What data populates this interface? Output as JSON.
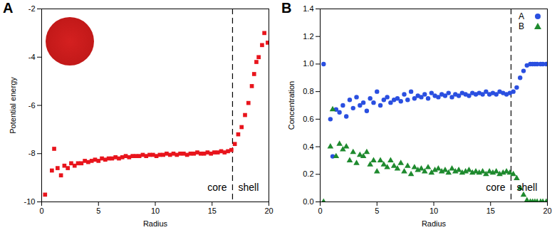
{
  "chart_data": [
    {
      "type": "scatter",
      "title": "A",
      "xlabel": "Radius",
      "ylabel": "Potential energy",
      "xlim": [
        0,
        20
      ],
      "xticks": [
        0,
        5,
        10,
        15,
        20
      ],
      "ylim": [
        -10,
        -2
      ],
      "yticks": [
        -10,
        -8,
        -6,
        -4,
        -2
      ],
      "vline": 16.8,
      "annotations": [
        "core",
        "shell"
      ],
      "x": [
        0.3,
        0.9,
        1.1,
        1.4,
        1.7,
        2.0,
        2.3,
        2.6,
        2.9,
        3.2,
        3.5,
        3.8,
        4.1,
        4.4,
        4.7,
        5.0,
        5.3,
        5.6,
        5.9,
        6.2,
        6.5,
        6.8,
        7.1,
        7.4,
        7.7,
        8.0,
        8.3,
        8.6,
        8.9,
        9.2,
        9.5,
        9.8,
        10.1,
        10.4,
        10.7,
        11.0,
        11.3,
        11.6,
        11.9,
        12.2,
        12.5,
        12.8,
        13.1,
        13.4,
        13.7,
        14.0,
        14.3,
        14.6,
        14.9,
        15.2,
        15.5,
        15.8,
        16.1,
        16.4,
        16.7,
        17.0,
        17.3,
        17.6,
        17.9,
        18.2,
        18.5,
        18.7,
        18.9,
        19.1,
        19.4,
        19.6,
        19.9
      ],
      "series": [
        {
          "color": "#e8141c",
          "marker": "square",
          "values": [
            -9.7,
            -8.7,
            -7.8,
            -8.6,
            -8.9,
            -8.5,
            -8.6,
            -8.4,
            -8.5,
            -8.4,
            -8.4,
            -8.3,
            -8.35,
            -8.3,
            -8.25,
            -8.3,
            -8.2,
            -8.25,
            -8.2,
            -8.2,
            -8.15,
            -8.2,
            -8.15,
            -8.1,
            -8.15,
            -8.1,
            -8.1,
            -8.1,
            -8.05,
            -8.1,
            -8.05,
            -8.05,
            -8.1,
            -8.05,
            -8.05,
            -8.0,
            -8.05,
            -8.0,
            -8.05,
            -8.0,
            -8.0,
            -8.05,
            -8.0,
            -8.0,
            -7.95,
            -8.0,
            -8.0,
            -7.95,
            -8.0,
            -7.95,
            -7.95,
            -7.9,
            -7.95,
            -7.9,
            -7.85,
            -7.6,
            -7.2,
            -6.9,
            -6.4,
            -5.9,
            -5.2,
            -4.7,
            -4.2,
            -4.0,
            -3.5,
            -3.0,
            -3.4
          ]
        }
      ]
    },
    {
      "type": "scatter",
      "title": "B",
      "xlabel": "Radius",
      "ylabel": "Concentration",
      "xlim": [
        0,
        20
      ],
      "xticks": [
        0,
        5,
        10,
        15,
        20
      ],
      "ylim": [
        0,
        1.4
      ],
      "yticks": [
        {
          "value": 0,
          "label": "0.0"
        },
        0.2,
        0.4,
        0.6,
        0.8,
        {
          "value": 1,
          "label": "1.0"
        },
        1.2,
        1.4
      ],
      "vline": 16.8,
      "annotations": [
        "core",
        "shell"
      ],
      "legend": "top-right",
      "x": [
        0.3,
        0.9,
        1.1,
        1.4,
        1.7,
        2.0,
        2.3,
        2.6,
        2.9,
        3.2,
        3.5,
        3.8,
        4.1,
        4.4,
        4.7,
        5.0,
        5.3,
        5.6,
        5.9,
        6.2,
        6.5,
        6.8,
        7.1,
        7.4,
        7.7,
        8.0,
        8.3,
        8.6,
        8.9,
        9.2,
        9.5,
        9.8,
        10.1,
        10.4,
        10.7,
        11.0,
        11.3,
        11.6,
        11.9,
        12.2,
        12.5,
        12.8,
        13.1,
        13.4,
        13.7,
        14.0,
        14.3,
        14.6,
        14.9,
        15.2,
        15.5,
        15.8,
        16.1,
        16.4,
        16.7,
        17.0,
        17.3,
        17.6,
        17.9,
        18.2,
        18.5,
        18.7,
        18.9,
        19.1,
        19.4,
        19.6,
        19.9
      ],
      "series": [
        {
          "name": "A",
          "color": "#2a4fe0",
          "marker": "circle",
          "values": [
            1.0,
            0.6,
            0.33,
            0.67,
            0.65,
            0.7,
            0.62,
            0.74,
            0.68,
            0.76,
            0.7,
            0.72,
            0.66,
            0.75,
            0.72,
            0.8,
            0.7,
            0.74,
            0.76,
            0.72,
            0.74,
            0.75,
            0.73,
            0.78,
            0.74,
            0.8,
            0.75,
            0.77,
            0.76,
            0.78,
            0.75,
            0.79,
            0.77,
            0.76,
            0.78,
            0.77,
            0.79,
            0.76,
            0.78,
            0.77,
            0.79,
            0.78,
            0.77,
            0.79,
            0.78,
            0.79,
            0.78,
            0.8,
            0.78,
            0.79,
            0.78,
            0.8,
            0.79,
            0.78,
            0.79,
            0.8,
            0.83,
            0.9,
            0.95,
            0.99,
            1.0,
            1.0,
            1.0,
            1.0,
            1.0,
            1.0,
            1.0
          ]
        },
        {
          "name": "B",
          "color": "#1e8a2e",
          "marker": "triangle",
          "values": [
            0.0,
            0.4,
            0.67,
            0.33,
            0.42,
            0.38,
            0.4,
            0.3,
            0.36,
            0.28,
            0.34,
            0.33,
            0.36,
            0.27,
            0.3,
            0.22,
            0.3,
            0.27,
            0.25,
            0.3,
            0.26,
            0.24,
            0.28,
            0.22,
            0.26,
            0.2,
            0.25,
            0.23,
            0.24,
            0.22,
            0.25,
            0.21,
            0.23,
            0.24,
            0.22,
            0.23,
            0.21,
            0.24,
            0.22,
            0.23,
            0.21,
            0.22,
            0.23,
            0.21,
            0.22,
            0.21,
            0.22,
            0.2,
            0.22,
            0.21,
            0.22,
            0.2,
            0.21,
            0.22,
            0.21,
            0.2,
            0.17,
            0.1,
            0.05,
            0.01,
            0.0,
            0.0,
            0.0,
            0.0,
            0.0,
            0.0,
            0.0
          ]
        }
      ]
    }
  ]
}
